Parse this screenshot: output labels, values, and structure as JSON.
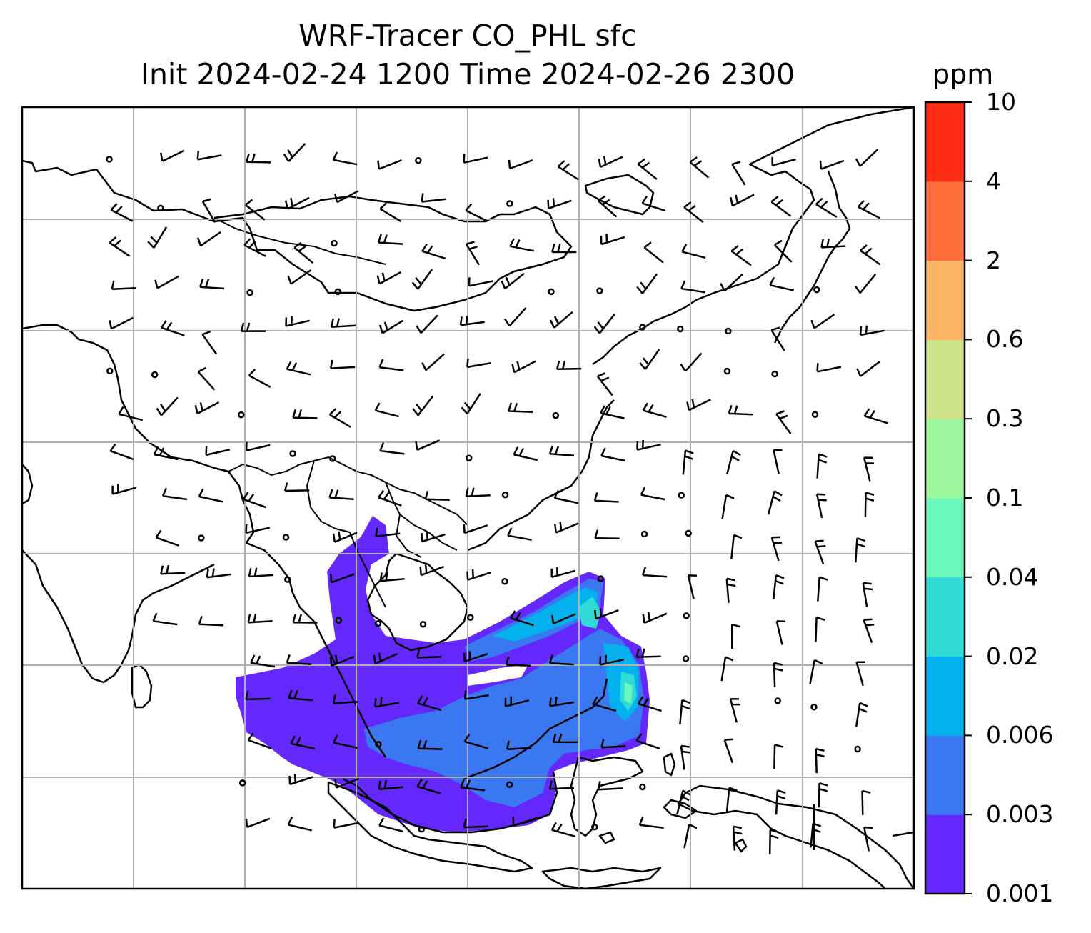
{
  "title": {
    "line1": "WRF-Tracer CO_PHL sfc",
    "line2": "Init 2024-02-24 1200 Time 2024-02-26 2300"
  },
  "colorbar": {
    "unit": "ppm",
    "levels": [
      {
        "label": "0.001",
        "color": "#6428fc"
      },
      {
        "label": "0.003",
        "color": "#3a78f1"
      },
      {
        "label": "0.006",
        "color": "#02b1ed"
      },
      {
        "label": "0.02",
        "color": "#30dad5"
      },
      {
        "label": "0.04",
        "color": "#6cf7be"
      },
      {
        "label": "0.1",
        "color": "#9ef99e"
      },
      {
        "label": "0.3",
        "color": "#cfe189"
      },
      {
        "label": "0.6",
        "color": "#fdb565"
      },
      {
        "label": "2",
        "color": "#ff6f3e"
      },
      {
        "label": "4",
        "color": "#ff2d16"
      },
      {
        "label": "10",
        "color": null
      }
    ]
  },
  "map": {
    "gridlines": "on",
    "coastline_color": "#000000",
    "gridline_color": "#b0b0b0",
    "wind_barbs": "on"
  }
}
